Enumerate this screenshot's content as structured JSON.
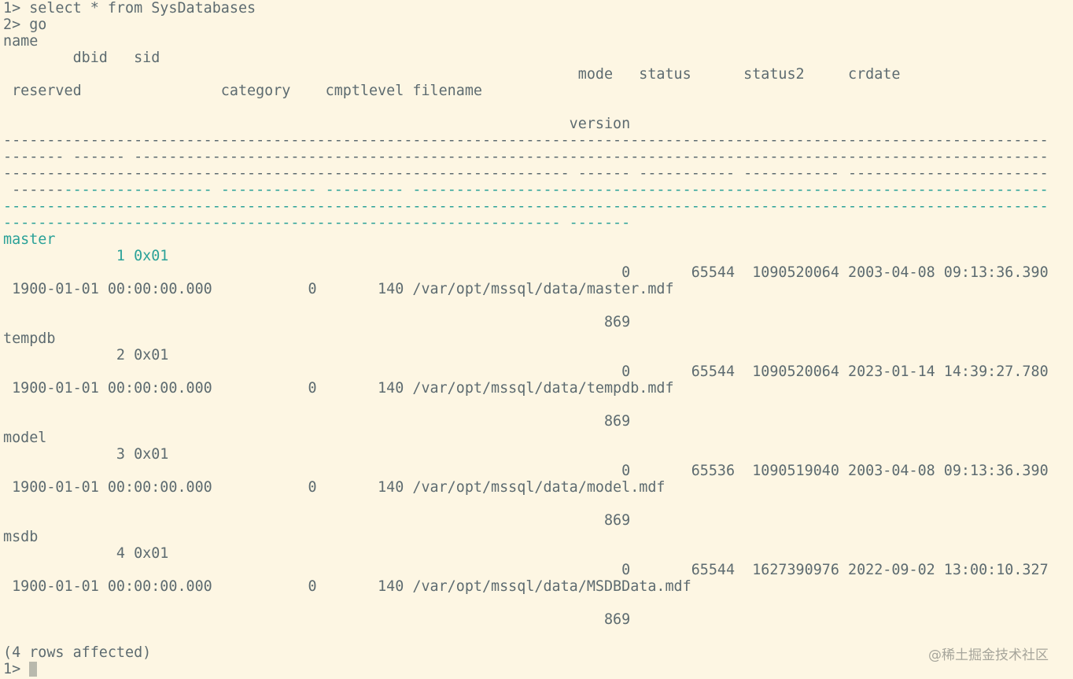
{
  "terminal": {
    "text_color": "#5d6b70",
    "background": "#fdf6e3",
    "selection_color": "#2aa198",
    "lines": [
      "1> select * from SysDatabases",
      "2> go",
      "name",
      "        dbid   sid",
      "                                                                  mode   status      status2     crdate",
      " reserved                category    cmptlevel filename",
      "",
      "                                                                 version",
      "------------------------------------------------------------------------------------------------------------------------",
      "------- ------ ---------------------------------------------------------------------------------------------------------",
      "----------------------------------------------------------------- ------ ----------- ----------- -----------------------",
      " ----------------------- ----------- --------- -------------------------------------------------------------------------",
      "------------------------------------------------------------------------------------------------------------------------",
      "---------------------------------------------------------------- -------",
      "master",
      "             1 0x01",
      "                                                                       0       65544  1090520064 2003-04-08 09:13:36.390",
      " 1900-01-01 00:00:00.000           0       140 /var/opt/mssql/data/master.mdf",
      "",
      "                                                                     869",
      "tempdb",
      "             2 0x01",
      "                                                                       0       65544  1090520064 2023-01-14 14:39:27.780",
      " 1900-01-01 00:00:00.000           0       140 /var/opt/mssql/data/tempdb.mdf",
      "",
      "                                                                     869",
      "model",
      "             3 0x01",
      "                                                                       0       65536  1090519040 2003-04-08 09:13:36.390",
      " 1900-01-01 00:00:00.000           0       140 /var/opt/mssql/data/model.mdf",
      "",
      "                                                                     869",
      "msdb",
      "             4 0x01",
      "                                                                       0       65544  1627390976 2022-09-02 13:00:10.327",
      " 1900-01-01 00:00:00.000           0       140 /var/opt/mssql/data/MSDBData.mdf",
      "",
      "                                                                     869",
      "",
      "(4 rows affected)",
      "1> "
    ]
  },
  "watermark": "@稀土掘金技术社区"
}
